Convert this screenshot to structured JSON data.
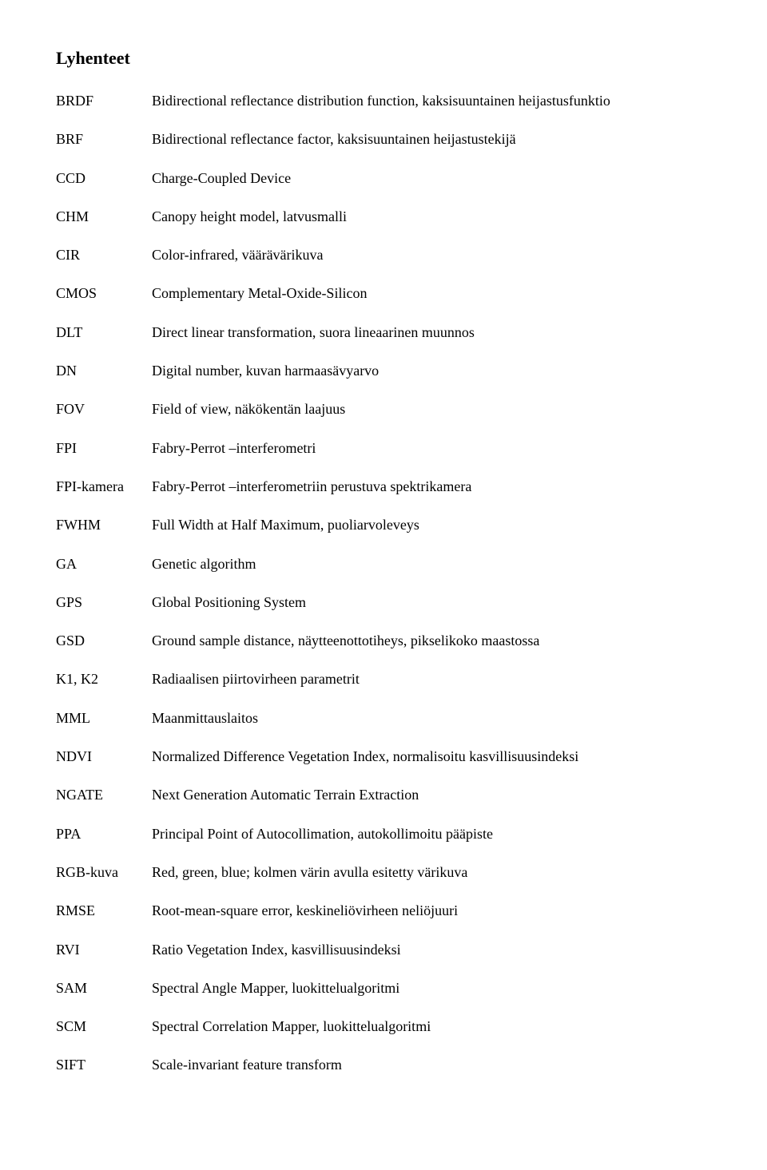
{
  "title": "Lyhenteet",
  "entries": [
    {
      "abbr": "BRDF",
      "def": "Bidirectional reflectance distribution function, kaksisuuntainen heijastusfunktio"
    },
    {
      "abbr": "BRF",
      "def": "Bidirectional reflectance factor, kaksisuuntainen heijastustekijä"
    },
    {
      "abbr": "CCD",
      "def": "Charge-Coupled Device"
    },
    {
      "abbr": "CHM",
      "def": "Canopy height model, latvusmalli"
    },
    {
      "abbr": "CIR",
      "def": "Color-infrared, väärävärikuva"
    },
    {
      "abbr": "CMOS",
      "def": "Complementary Metal-Oxide-Silicon"
    },
    {
      "abbr": "DLT",
      "def": "Direct linear transformation, suora lineaarinen muunnos"
    },
    {
      "abbr": "DN",
      "def": "Digital number, kuvan harmaasävyarvo"
    },
    {
      "abbr": "FOV",
      "def": "Field of view, näkökentän laajuus"
    },
    {
      "abbr": "FPI",
      "def": "Fabry-Perrot –interferometri"
    },
    {
      "abbr": "FPI-kamera",
      "def": "Fabry-Perrot –interferometriin perustuva spektrikamera"
    },
    {
      "abbr": "FWHM",
      "def": "Full Width at Half Maximum, puoliarvoleveys"
    },
    {
      "abbr": "GA",
      "def": "Genetic  algorithm"
    },
    {
      "abbr": "GPS",
      "def": "Global Positioning System"
    },
    {
      "abbr": "GSD",
      "def": "Ground sample distance, näytteenottotiheys, pikselikoko maastossa"
    },
    {
      "abbr": "K1, K2",
      "def": "Radiaalisen piirtovirheen parametrit"
    },
    {
      "abbr": "MML",
      "def": "Maanmittauslaitos"
    },
    {
      "abbr": "NDVI",
      "def": "Normalized Difference Vegetation Index, normalisoitu kasvillisuusindeksi"
    },
    {
      "abbr": "NGATE",
      "def": "Next Generation Automatic Terrain Extraction"
    },
    {
      "abbr": "PPA",
      "def": "Principal Point of Autocollimation, autokollimoitu pääpiste"
    },
    {
      "abbr": "RGB-kuva",
      "def": "Red, green, blue; kolmen värin avulla esitetty värikuva"
    },
    {
      "abbr": "RMSE",
      "def": "Root-mean-square error, keskineliövirheen neliöjuuri"
    },
    {
      "abbr": "RVI",
      "def": "Ratio Vegetation Index, kasvillisuusindeksi"
    },
    {
      "abbr": "SAM",
      "def": "Spectral Angle Mapper, luokittelualgoritmi"
    },
    {
      "abbr": "SCM",
      "def": "Spectral Correlation Mapper, luokittelualgoritmi"
    },
    {
      "abbr": "SIFT",
      "def": "Scale-invariant feature transform"
    }
  ]
}
